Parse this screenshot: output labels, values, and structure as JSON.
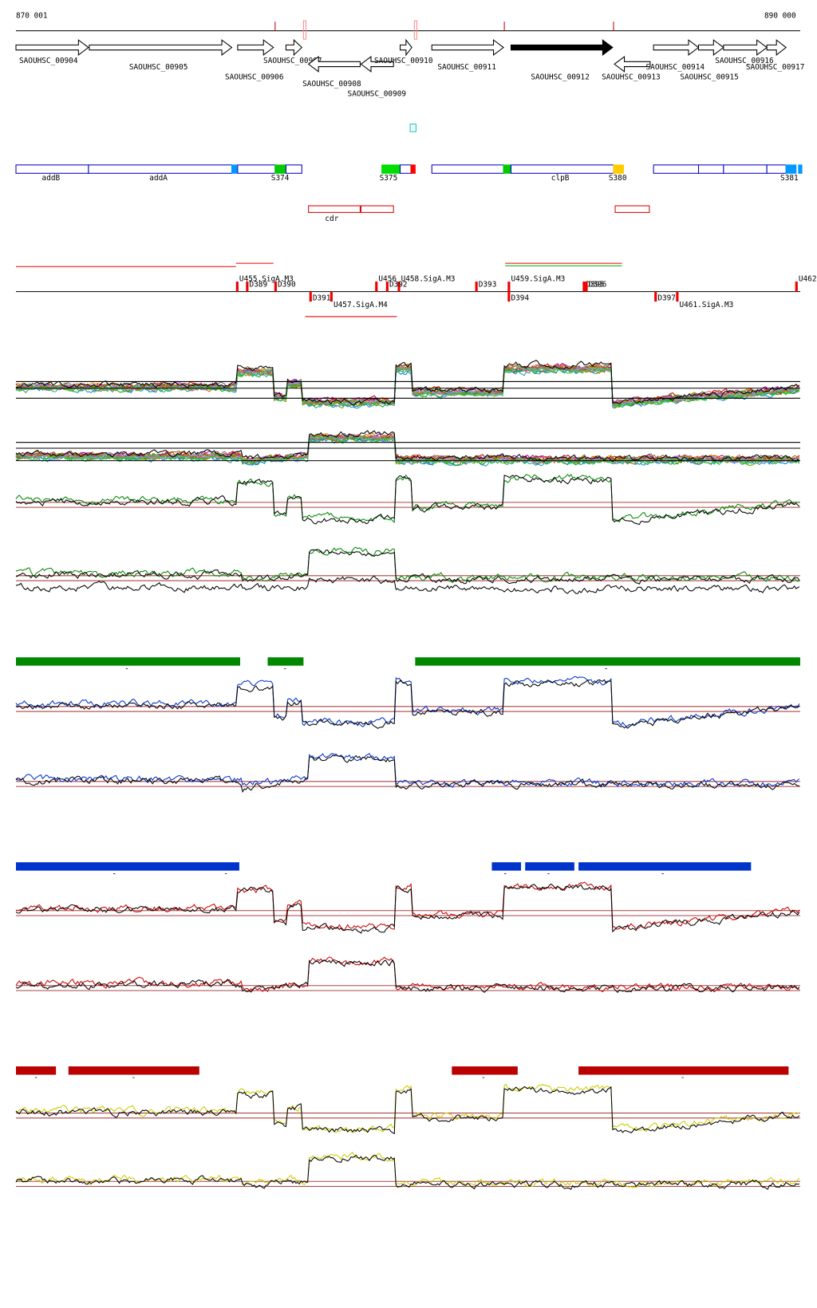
{
  "scale": {
    "start": "870 001",
    "end": "890 000"
  },
  "genes": [
    "SAOUHSC_00904",
    "SAOUHSC_00905",
    "SAOUHSC_00906",
    "SAOUHSC_00907",
    "SAOUHSC_00908",
    "SAOUHSC_00909",
    "SAOUHSC_00910",
    "SAOUHSC_00911",
    "SAOUHSC_00912",
    "SAOUHSC_00913",
    "SAOUHSC_00914",
    "SAOUHSC_00915",
    "SAOUHSC_00916",
    "SAOUHSC_00917"
  ],
  "annotations": [
    "addB",
    "addA",
    "S374",
    "S375",
    "clpB",
    "S380",
    "S381"
  ],
  "terminator_region": "cdr",
  "regulatory": [
    "U455.SigA.M3",
    "D389",
    "D390",
    "D391",
    "U457.SigA.M4",
    "U456",
    "U458.SigA.M3",
    "D392",
    "D393",
    "U459.SigA.M3",
    "D394",
    "D395",
    "D396",
    "D397",
    "U461.SigA.M3",
    "U462"
  ],
  "bar_marks": {
    "green": [
      "-",
      "-",
      "-"
    ],
    "blue": [
      "-",
      "-",
      "-",
      "-",
      "-"
    ],
    "red": [
      "-",
      "-",
      "-",
      "-"
    ]
  }
}
